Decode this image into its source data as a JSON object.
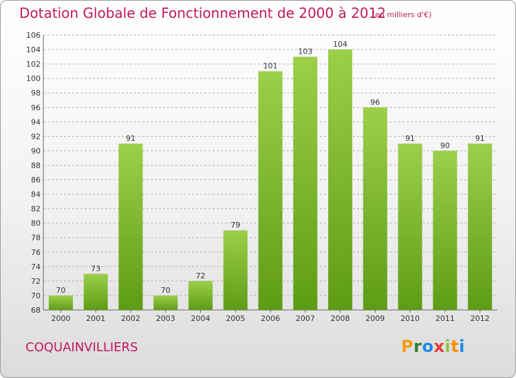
{
  "header": {
    "title": "Dotation Globale de Fonctionnement de 2000 à 2012",
    "subtitle": "(en milliers d'€)"
  },
  "footer": {
    "city": "COQUAINVILLIERS",
    "logo_letters": [
      "P",
      "r",
      "o",
      "x",
      "i",
      "t",
      "i"
    ],
    "logo_colors": [
      "#f39c12",
      "#2e7d32",
      "#1e88e5",
      "#e53935",
      "#8bc34a",
      "#fb8c00",
      "#1e88e5"
    ]
  },
  "colors": {
    "bar_light": "#9ccf4a",
    "bar_dark": "#5e9c16",
    "grid": "#b0b0b0",
    "title": "#c2185b"
  },
  "chart_data": {
    "type": "bar",
    "title": "Dotation Globale de Fonctionnement de 2000 à 2012",
    "subtitle": "(en milliers d'€)",
    "categories": [
      "2000",
      "2001",
      "2002",
      "2003",
      "2004",
      "2005",
      "2006",
      "2007",
      "2008",
      "2009",
      "2010",
      "2011",
      "2012"
    ],
    "values": [
      70,
      73,
      91,
      70,
      72,
      79,
      101,
      103,
      104,
      96,
      91,
      90,
      91
    ],
    "ylim": [
      68,
      106
    ],
    "yticks": [
      68,
      70,
      72,
      74,
      76,
      78,
      80,
      82,
      84,
      86,
      88,
      90,
      92,
      94,
      96,
      98,
      100,
      102,
      104,
      106
    ],
    "grid": true,
    "legend": "none"
  }
}
